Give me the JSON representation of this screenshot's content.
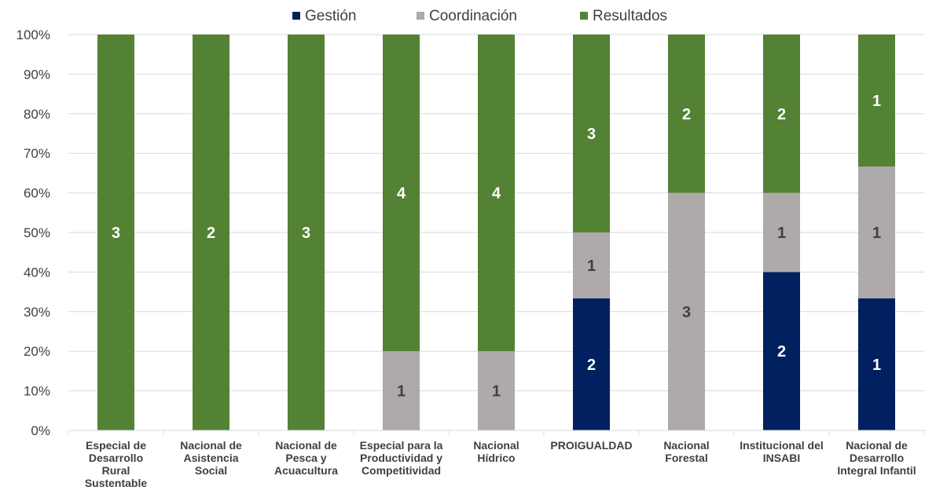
{
  "chart_data": {
    "type": "bar",
    "stacked": "percent",
    "title": "",
    "xlabel": "",
    "ylabel": "",
    "ylim": [
      0,
      100
    ],
    "y_ticks": [
      "0%",
      "10%",
      "20%",
      "30%",
      "40%",
      "50%",
      "60%",
      "70%",
      "80%",
      "90%",
      "100%"
    ],
    "grid": true,
    "legend_position": "top",
    "categories": [
      [
        "Especial de",
        "Desarrollo",
        "Rural",
        "Sustentable"
      ],
      [
        "Nacional de",
        "Asistencia",
        "Social"
      ],
      [
        "Nacional de",
        "Pesca y",
        "Acuacultura"
      ],
      [
        "Especial para la",
        "Productividad y",
        "Competitividad"
      ],
      [
        "Nacional",
        "Hídrico"
      ],
      [
        "PROIGUALDAD"
      ],
      [
        "Nacional",
        "Forestal"
      ],
      [
        "Institucional del",
        "INSABI"
      ],
      [
        "Nacional de",
        "Desarrollo",
        "Integral Infantil"
      ]
    ],
    "series": [
      {
        "name": "Gestión",
        "color": "#002060",
        "label_color": "#ffffff",
        "values": [
          0,
          0,
          0,
          0,
          0,
          2,
          0,
          2,
          1
        ]
      },
      {
        "name": "Coordinación",
        "color": "#aeaaaa",
        "label_color": "#404040",
        "values": [
          0,
          0,
          0,
          1,
          1,
          1,
          3,
          1,
          1
        ]
      },
      {
        "name": "Resultados",
        "color": "#548235",
        "label_color": "#ffffff",
        "values": [
          3,
          2,
          3,
          4,
          4,
          3,
          2,
          2,
          1
        ]
      }
    ]
  }
}
